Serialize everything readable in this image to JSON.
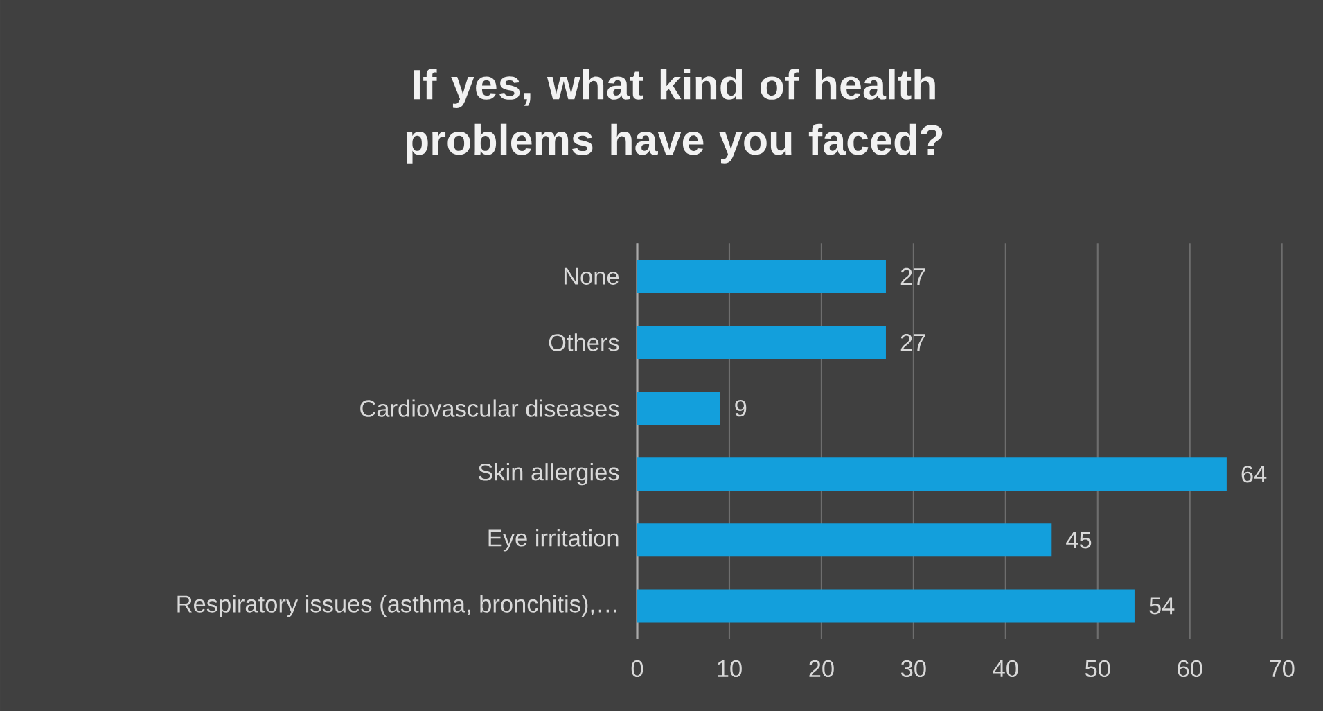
{
  "chart_data": {
    "type": "bar",
    "orientation": "horizontal",
    "title": "If yes, what kind of health problems have you faced?",
    "categories": [
      "None",
      "Others",
      "Cardiovascular diseases",
      "Skin allergies",
      "Eye irritation",
      "Respiratory issues (asthma, bronchitis),…"
    ],
    "values": [
      27,
      27,
      9,
      64,
      45,
      54
    ],
    "color": "#139fdc",
    "xlim": [
      0,
      70
    ],
    "xticks": [
      0,
      10,
      20,
      30,
      40,
      50,
      60,
      70
    ],
    "grid": "x",
    "data_labels": true
  }
}
